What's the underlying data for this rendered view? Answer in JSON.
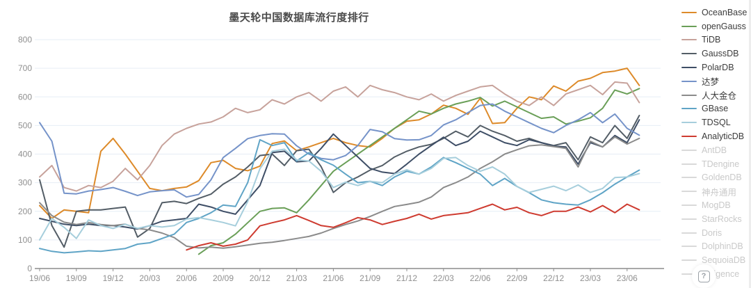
{
  "title": "墨天轮中国数据库流行度排行",
  "help_badge": "?",
  "chart_data": {
    "type": "line",
    "x": [
      "19/06",
      "19/07",
      "19/08",
      "19/09",
      "19/10",
      "19/11",
      "19/12",
      "20/01",
      "20/02",
      "20/03",
      "20/04",
      "20/05",
      "20/06",
      "20/07",
      "20/08",
      "20/09",
      "20/10",
      "20/11",
      "20/12",
      "21/01",
      "21/02",
      "21/03",
      "21/04",
      "21/05",
      "21/06",
      "21/07",
      "21/08",
      "21/09",
      "21/10",
      "21/11",
      "21/12",
      "22/01",
      "22/02",
      "22/03",
      "22/04",
      "22/05",
      "22/06",
      "22/07",
      "22/08",
      "22/09",
      "22/10",
      "22/11",
      "22/12",
      "23/01",
      "23/02",
      "23/03",
      "23/04",
      "23/05",
      "23/06",
      "23/07"
    ],
    "x_tick_every": 3,
    "xlabel": "",
    "ylabel": "",
    "ylim": [
      0,
      800
    ],
    "y_ticks": [
      0,
      100,
      200,
      300,
      400,
      500,
      600,
      700,
      800
    ],
    "grid": true,
    "legend_position": "right",
    "series": [
      {
        "name": "OceanBase",
        "color": "#DD8A29",
        "values": [
          220,
          175,
          205,
          200,
          195,
          410,
          455,
          400,
          340,
          280,
          272,
          280,
          285,
          307,
          370,
          378,
          350,
          342,
          358,
          437,
          446,
          412,
          425,
          440,
          455,
          440,
          430,
          425,
          455,
          490,
          515,
          520,
          540,
          571,
          560,
          539,
          595,
          507,
          510,
          560,
          600,
          590,
          638,
          620,
          655,
          665,
          685,
          690,
          700,
          640
        ]
      },
      {
        "name": "openGauss",
        "color": "#6A9F58",
        "values": [
          null,
          null,
          null,
          null,
          null,
          null,
          null,
          null,
          null,
          null,
          null,
          null,
          null,
          50,
          80,
          90,
          120,
          160,
          200,
          210,
          212,
          195,
          240,
          290,
          340,
          370,
          400,
          430,
          460,
          490,
          520,
          550,
          540,
          560,
          575,
          585,
          598,
          568,
          585,
          565,
          545,
          525,
          530,
          505,
          515,
          527,
          560,
          624,
          610,
          629
        ]
      },
      {
        "name": "TiDB",
        "color": "#C7A29B",
        "values": [
          320,
          360,
          283,
          271,
          290,
          283,
          305,
          350,
          310,
          360,
          430,
          470,
          490,
          505,
          512,
          530,
          560,
          545,
          555,
          590,
          575,
          600,
          615,
          585,
          620,
          635,
          600,
          640,
          625,
          615,
          600,
          590,
          610,
          585,
          605,
          620,
          635,
          640,
          610,
          585,
          570,
          600,
          570,
          610,
          625,
          640,
          608,
          652,
          648,
          580
        ]
      },
      {
        "name": "GaussDB",
        "color": "#535D66",
        "values": [
          310,
          150,
          75,
          200,
          205,
          205,
          210,
          215,
          110,
          140,
          230,
          235,
          227,
          245,
          260,
          295,
          320,
          355,
          395,
          400,
          360,
          412,
          417,
          356,
          266,
          300,
          320,
          344,
          360,
          390,
          410,
          425,
          434,
          455,
          480,
          460,
          500,
          480,
          465,
          445,
          455,
          440,
          430,
          440,
          380,
          460,
          440,
          500,
          455,
          535
        ]
      },
      {
        "name": "PolarDB",
        "color": "#3E4E66",
        "values": [
          175,
          165,
          155,
          150,
          155,
          150,
          150,
          145,
          138,
          150,
          165,
          170,
          175,
          225,
          215,
          200,
          190,
          240,
          290,
          405,
          410,
          373,
          376,
          420,
          470,
          430,
          390,
          350,
          337,
          332,
          365,
          400,
          430,
          459,
          430,
          445,
          480,
          460,
          440,
          430,
          450,
          440,
          428,
          425,
          365,
          440,
          425,
          465,
          440,
          520
        ]
      },
      {
        "name": "达梦",
        "color": "#7593C9",
        "values": [
          510,
          445,
          263,
          261,
          271,
          276,
          283,
          270,
          255,
          268,
          272,
          275,
          250,
          259,
          310,
          388,
          420,
          454,
          465,
          471,
          470,
          429,
          400,
          385,
          380,
          395,
          430,
          486,
          478,
          454,
          449,
          450,
          465,
          502,
          520,
          545,
          570,
          575,
          550,
          530,
          510,
          490,
          475,
          500,
          520,
          545,
          510,
          540,
          490,
          466
        ]
      },
      {
        "name": "人大金仓",
        "color": "#8B8B8B",
        "values": [
          230,
          185,
          162,
          154,
          161,
          154,
          150,
          155,
          140,
          135,
          124,
          108,
          78,
          72,
          75,
          71,
          76,
          82,
          88,
          92,
          98,
          105,
          112,
          124,
          140,
          154,
          166,
          182,
          200,
          217,
          224,
          232,
          250,
          283,
          300,
          320,
          350,
          373,
          400,
          415,
          429,
          432,
          426,
          420,
          355,
          445,
          425,
          460,
          435,
          455
        ]
      },
      {
        "name": "GBase",
        "color": "#5FA4C6",
        "values": [
          70,
          60,
          55,
          58,
          62,
          60,
          65,
          70,
          85,
          90,
          105,
          120,
          161,
          175,
          195,
          222,
          217,
          300,
          450,
          430,
          440,
          376,
          405,
          380,
          361,
          330,
          300,
          305,
          290,
          320,
          340,
          330,
          355,
          388,
          370,
          350,
          330,
          290,
          315,
          287,
          265,
          240,
          230,
          225,
          222,
          240,
          265,
          295,
          320,
          344
        ]
      },
      {
        "name": "TDSQL",
        "color": "#A6CEDC",
        "values": [
          100,
          175,
          144,
          105,
          170,
          150,
          140,
          155,
          140,
          150,
          145,
          150,
          173,
          178,
          170,
          161,
          149,
          234,
          349,
          410,
          417,
          380,
          376,
          340,
          283,
          302,
          290,
          305,
          300,
          330,
          345,
          330,
          350,
          385,
          388,
          360,
          340,
          355,
          330,
          287,
          266,
          277,
          288,
          272,
          292,
          266,
          280,
          318,
          320,
          332
        ]
      },
      {
        "name": "AnalyticDB",
        "color": "#CE3B30",
        "values": [
          null,
          null,
          null,
          null,
          null,
          null,
          null,
          null,
          null,
          null,
          null,
          null,
          65,
          80,
          90,
          78,
          85,
          100,
          149,
          160,
          170,
          185,
          168,
          150,
          144,
          160,
          178,
          170,
          154,
          165,
          175,
          190,
          173,
          185,
          190,
          195,
          210,
          225,
          205,
          214,
          195,
          185,
          200,
          200,
          215,
          198,
          220,
          195,
          225,
          205
        ]
      }
    ],
    "disabled_series": [
      "AntDB",
      "TDengine",
      "GoldenDB",
      "神舟通用",
      "MogDB",
      "StarRocks",
      "Doris",
      "DolphinDB",
      "SequoiaDB",
      "Kyligence"
    ]
  }
}
